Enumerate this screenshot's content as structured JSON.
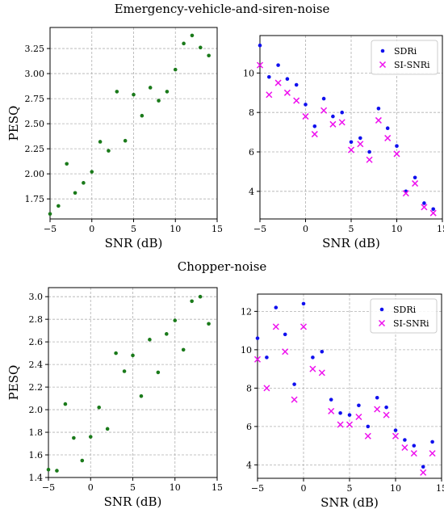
{
  "sections": [
    {
      "title": "Emergency-vehicle-and-siren-noise"
    },
    {
      "title": "Chopper-noise"
    }
  ],
  "chart_data": [
    {
      "type": "scatter",
      "title": "",
      "xlabel": "SNR (dB)",
      "ylabel": "PESQ",
      "xlim": [
        -5,
        15
      ],
      "ylim": [
        1.55,
        3.46
      ],
      "xticks": [
        -5,
        0,
        5,
        10,
        15
      ],
      "yticks": [
        1.75,
        2.0,
        2.25,
        2.5,
        2.75,
        3.0,
        3.25
      ],
      "ytick_labels": [
        "1.75",
        "2.00",
        "2.25",
        "2.50",
        "2.75",
        "3.00",
        "3.25"
      ],
      "grid": true,
      "legend": null,
      "colors": {
        "PESQ": "#1a7a1a"
      },
      "series": [
        {
          "key": "PESQ",
          "x": [
            -5,
            -4,
            -3,
            -2,
            -1,
            0,
            1,
            2,
            3,
            4,
            5,
            6,
            7,
            8,
            9,
            10,
            11,
            12,
            13,
            14
          ],
          "y": [
            1.6,
            1.68,
            2.1,
            1.81,
            1.91,
            2.02,
            2.32,
            2.23,
            2.82,
            2.33,
            2.79,
            2.58,
            2.86,
            2.73,
            2.82,
            3.04,
            3.3,
            3.38,
            3.26,
            3.18
          ]
        }
      ]
    },
    {
      "type": "scatter",
      "title": "",
      "xlabel": "SNR (dB)",
      "ylabel": "",
      "xlim": [
        -5,
        15
      ],
      "ylim": [
        2.6,
        11.9
      ],
      "xticks": [
        -5,
        0,
        5,
        10,
        15
      ],
      "yticks": [
        4,
        6,
        8,
        10
      ],
      "grid": true,
      "legend": "top-right",
      "series": [
        {
          "name": "SDRi",
          "marker": "dot",
          "color": "#1010ee",
          "x": [
            -5,
            -4,
            -3,
            -2,
            -1,
            0,
            1,
            2,
            3,
            4,
            5,
            6,
            7,
            8,
            9,
            10,
            11,
            12,
            13,
            14
          ],
          "y": [
            11.4,
            9.8,
            10.4,
            9.7,
            9.4,
            8.4,
            7.3,
            8.7,
            7.8,
            8.0,
            6.5,
            6.7,
            6.0,
            8.2,
            7.2,
            6.3,
            4.0,
            4.7,
            3.4,
            3.1
          ]
        },
        {
          "name": "SI-SNRi",
          "marker": "x",
          "color": "#ee10ee",
          "x": [
            -5,
            -4,
            -3,
            -2,
            -1,
            0,
            1,
            2,
            3,
            4,
            5,
            6,
            7,
            8,
            9,
            10,
            11,
            12,
            13,
            14
          ],
          "y": [
            10.4,
            8.9,
            9.5,
            9.0,
            8.6,
            7.8,
            6.9,
            8.1,
            7.4,
            7.5,
            6.1,
            6.4,
            5.6,
            7.6,
            6.7,
            5.9,
            3.9,
            4.4,
            3.2,
            2.9
          ]
        }
      ]
    },
    {
      "type": "scatter",
      "title": "",
      "xlabel": "SNR (dB)",
      "ylabel": "PESQ",
      "xlim": [
        -5,
        15
      ],
      "ylim": [
        1.4,
        3.08
      ],
      "xticks": [
        -5,
        0,
        5,
        10,
        15
      ],
      "yticks": [
        1.4,
        1.6,
        1.8,
        2.0,
        2.2,
        2.4,
        2.6,
        2.8,
        3.0
      ],
      "ytick_labels": [
        "1.4",
        "1.6",
        "1.8",
        "2.0",
        "2.2",
        "2.4",
        "2.6",
        "2.8",
        "3.0"
      ],
      "grid": true,
      "legend": null,
      "colors": {
        "PESQ": "#1a7a1a"
      },
      "series": [
        {
          "key": "PESQ",
          "x": [
            -5,
            -4,
            -3,
            -2,
            -1,
            0,
            1,
            2,
            3,
            4,
            5,
            6,
            7,
            8,
            9,
            10,
            11,
            12,
            13,
            14
          ],
          "y": [
            1.47,
            1.46,
            2.05,
            1.75,
            1.55,
            1.76,
            2.02,
            1.83,
            2.5,
            2.34,
            2.48,
            2.12,
            2.62,
            2.33,
            2.67,
            2.79,
            2.53,
            2.96,
            3.0,
            2.76
          ]
        }
      ]
    },
    {
      "type": "scatter",
      "title": "",
      "xlabel": "SNR (dB)",
      "ylabel": "",
      "xlim": [
        -5,
        15
      ],
      "ylim": [
        3.3,
        12.9
      ],
      "xticks": [
        -5,
        0,
        5,
        10,
        15
      ],
      "yticks": [
        4,
        6,
        8,
        10,
        12
      ],
      "grid": true,
      "legend": "top-right",
      "series": [
        {
          "name": "SDRi",
          "marker": "dot",
          "color": "#1010ee",
          "x": [
            -5,
            -4,
            -3,
            -2,
            -1,
            0,
            1,
            2,
            3,
            4,
            5,
            6,
            7,
            8,
            9,
            10,
            11,
            12,
            13,
            14
          ],
          "y": [
            10.6,
            9.6,
            12.2,
            10.8,
            8.2,
            12.4,
            9.6,
            9.9,
            7.4,
            6.7,
            6.6,
            7.1,
            6.0,
            7.5,
            7.0,
            5.8,
            5.3,
            5.0,
            3.9,
            5.2
          ]
        },
        {
          "name": "SI-SNRi",
          "marker": "x",
          "color": "#ee10ee",
          "x": [
            -5,
            -4,
            -3,
            -2,
            -1,
            0,
            1,
            2,
            3,
            4,
            5,
            6,
            7,
            8,
            9,
            10,
            11,
            12,
            13,
            14
          ],
          "y": [
            9.5,
            8.0,
            11.2,
            9.9,
            7.4,
            11.2,
            9.0,
            8.8,
            6.8,
            6.1,
            6.1,
            6.5,
            5.5,
            6.9,
            6.6,
            5.5,
            4.9,
            4.6,
            3.6,
            4.6
          ]
        }
      ]
    }
  ]
}
